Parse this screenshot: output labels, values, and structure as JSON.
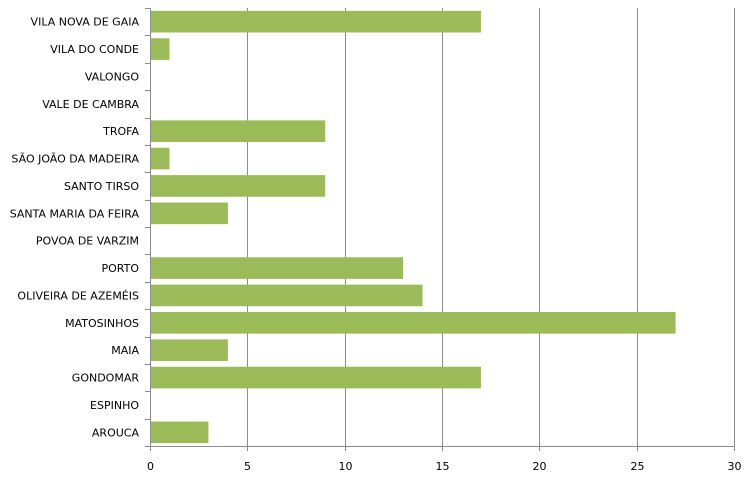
{
  "chart_data": {
    "type": "bar",
    "orientation": "horizontal",
    "title": "",
    "xlabel": "",
    "ylabel": "",
    "xlim": [
      0,
      30
    ],
    "x_ticks": [
      0,
      5,
      10,
      15,
      20,
      25,
      30
    ],
    "grid": "vertical",
    "legend": "none",
    "bar_color": "#9BBB59",
    "categories": [
      "VILA NOVA DE GAIA",
      "VILA DO CONDE",
      "VALONGO",
      "VALE DE CAMBRA",
      "TROFA",
      "SÃO JOÃO DA MADEIRA",
      "SANTO TIRSO",
      "SANTA MARIA DA FEIRA",
      "POVOA DE VARZIM",
      "PORTO",
      "OLIVEIRA DE AZEMÉIS",
      "MATOSINHOS",
      "MAIA",
      "GONDOMAR",
      "ESPINHO",
      "AROUCA"
    ],
    "values": [
      17,
      1,
      0,
      0,
      9,
      1,
      9,
      4,
      0,
      13,
      14,
      27,
      4,
      17,
      0,
      3
    ]
  }
}
